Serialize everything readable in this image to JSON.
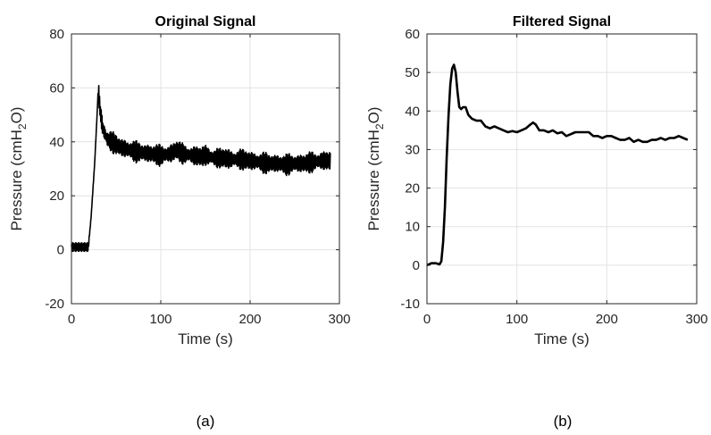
{
  "chart_data": [
    {
      "type": "line",
      "title": "Original Signal",
      "xlabel": "Time (s)",
      "ylabel_parts": [
        "Pressure (cmH",
        "2",
        "O)"
      ],
      "xlim": [
        0,
        300
      ],
      "ylim": [
        -20,
        80
      ],
      "xticks": [
        0,
        100,
        200,
        300
      ],
      "yticks": [
        -20,
        0,
        20,
        40,
        60,
        80
      ],
      "grid": true,
      "caption": "(a)",
      "line_color": "#000000",
      "noisy": true,
      "series": [
        {
          "x": [
            0,
            5,
            10,
            15,
            19,
            22,
            26,
            29,
            30,
            32,
            35,
            40,
            45,
            50,
            55,
            60,
            70,
            80,
            90,
            100,
            110,
            118,
            125,
            135,
            145,
            150,
            160,
            170,
            180,
            190,
            200,
            210,
            220,
            230,
            240,
            250,
            260,
            270,
            280,
            290
          ],
          "values": [
            1,
            1,
            1,
            1,
            1,
            12,
            32,
            52,
            60,
            52,
            45,
            41,
            40,
            39,
            38,
            37.5,
            36.5,
            36,
            35.5,
            35,
            35.5,
            37,
            35.5,
            35,
            34.5,
            35,
            34,
            34,
            33.5,
            33.5,
            33,
            32.5,
            32,
            32,
            31.5,
            32,
            32,
            32.5,
            33,
            33
          ]
        }
      ]
    },
    {
      "type": "line",
      "title": "Filtered Signal",
      "xlabel": "Time (s)",
      "ylabel_parts": [
        "Pressure (cmH",
        "2",
        "O)"
      ],
      "xlim": [
        0,
        300
      ],
      "ylim": [
        -10,
        60
      ],
      "xticks": [
        0,
        100,
        200,
        300
      ],
      "yticks": [
        -10,
        0,
        10,
        20,
        30,
        40,
        50,
        60
      ],
      "grid": true,
      "caption": "(b)",
      "line_color": "#000000",
      "noisy": false,
      "series": [
        {
          "x": [
            0,
            5,
            10,
            14,
            16,
            18,
            20,
            22,
            24,
            26,
            28,
            30,
            32,
            34,
            36,
            38,
            40,
            43,
            46,
            50,
            55,
            60,
            65,
            70,
            75,
            80,
            85,
            90,
            95,
            100,
            105,
            110,
            115,
            118,
            121,
            125,
            130,
            135,
            140,
            145,
            150,
            155,
            160,
            165,
            170,
            175,
            180,
            185,
            190,
            195,
            200,
            205,
            210,
            215,
            220,
            225,
            230,
            235,
            240,
            245,
            250,
            255,
            260,
            265,
            270,
            275,
            280,
            285,
            290
          ],
          "values": [
            0,
            0.5,
            0.5,
            0.2,
            1,
            6,
            15,
            28,
            39,
            47,
            51,
            52,
            50,
            45,
            41,
            40.5,
            41,
            41,
            39,
            38,
            37.5,
            37.5,
            36,
            35.5,
            36,
            35.5,
            35,
            34.5,
            34.8,
            34.5,
            35,
            35.5,
            36.5,
            37,
            36.5,
            35,
            35,
            34.5,
            35,
            34.2,
            34.5,
            33.5,
            34,
            34.5,
            34.5,
            34.5,
            34.5,
            33.5,
            33.5,
            33,
            33.5,
            33.5,
            33,
            32.5,
            32.5,
            33,
            32,
            32.5,
            32,
            32,
            32.5,
            32.5,
            33,
            32.5,
            33,
            33,
            33.5,
            33,
            32.5
          ]
        }
      ]
    }
  ]
}
